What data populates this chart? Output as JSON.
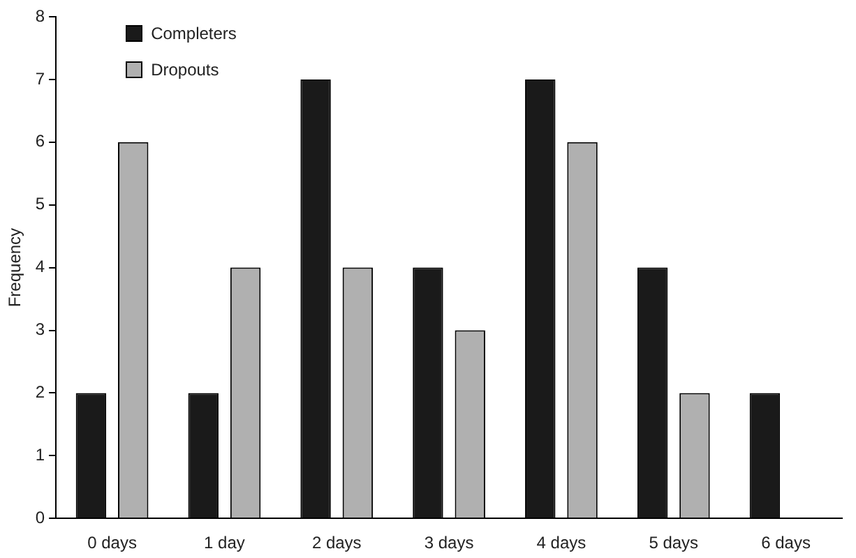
{
  "chart_data": {
    "type": "bar",
    "ylabel": "Frequency",
    "categories": [
      "0 days",
      "1 day",
      "2 days",
      "3 days",
      "4 days",
      "5 days",
      "6 days"
    ],
    "series": [
      {
        "name": "Completers",
        "color": "#1a1a1a",
        "values": [
          2,
          2,
          7,
          4,
          7,
          4,
          2
        ]
      },
      {
        "name": "Dropouts",
        "color": "#b0b0b0",
        "values": [
          6,
          4,
          4,
          3,
          6,
          2,
          0
        ]
      }
    ],
    "ylim": [
      0,
      8
    ],
    "yticks": [
      0,
      1,
      2,
      3,
      4,
      5,
      6,
      7,
      8
    ],
    "grid": false,
    "legend": "top left"
  }
}
